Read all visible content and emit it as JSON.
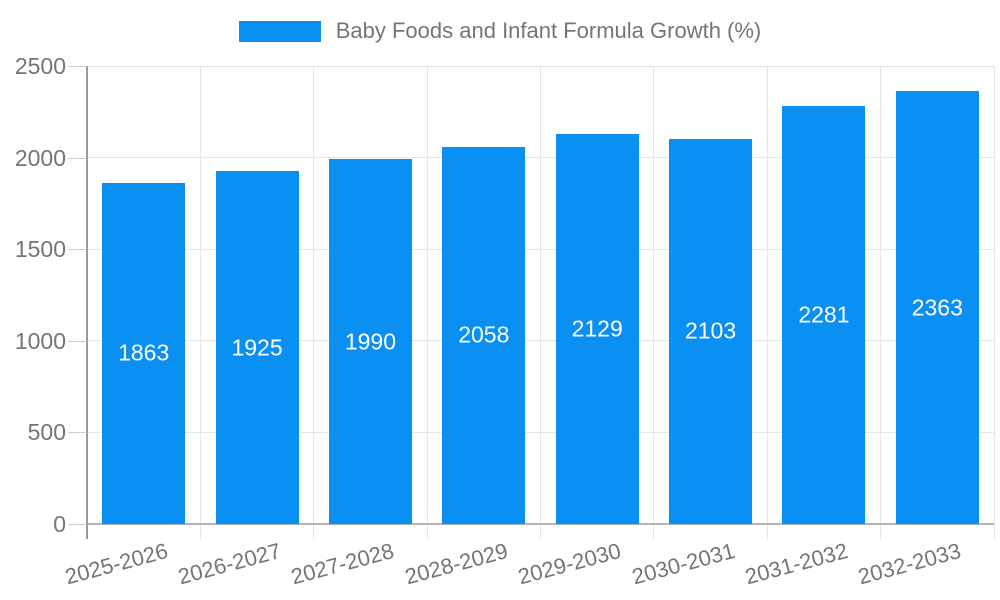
{
  "chart_data": {
    "type": "bar",
    "title": "",
    "legend_label": "Baby Foods and Infant Formula Growth (%)",
    "legend_position": "top-center",
    "categories": [
      "2025-2026",
      "2026-2027",
      "2027-2028",
      "2028-2029",
      "2029-2030",
      "2030-2031",
      "2031-2032",
      "2032-2033"
    ],
    "values": [
      1863,
      1925,
      1990,
      2058,
      2129,
      2103,
      2281,
      2363
    ],
    "xlabel": "",
    "ylabel": "",
    "ylim": [
      0,
      2500
    ],
    "yticks": [
      0,
      500,
      1000,
      1500,
      2000,
      2500
    ],
    "grid": true,
    "x_tick_rotation_deg": -15,
    "bar_labels_inside": true
  },
  "colors": {
    "bar": "#0A8FF3",
    "bar_label": "#ffffff",
    "axis_text": "#757575",
    "legend_text": "#757575",
    "gridline": "#e6e6e6",
    "axis_line": "#999999",
    "baseline": "#b3b3b3",
    "background": "#ffffff"
  }
}
